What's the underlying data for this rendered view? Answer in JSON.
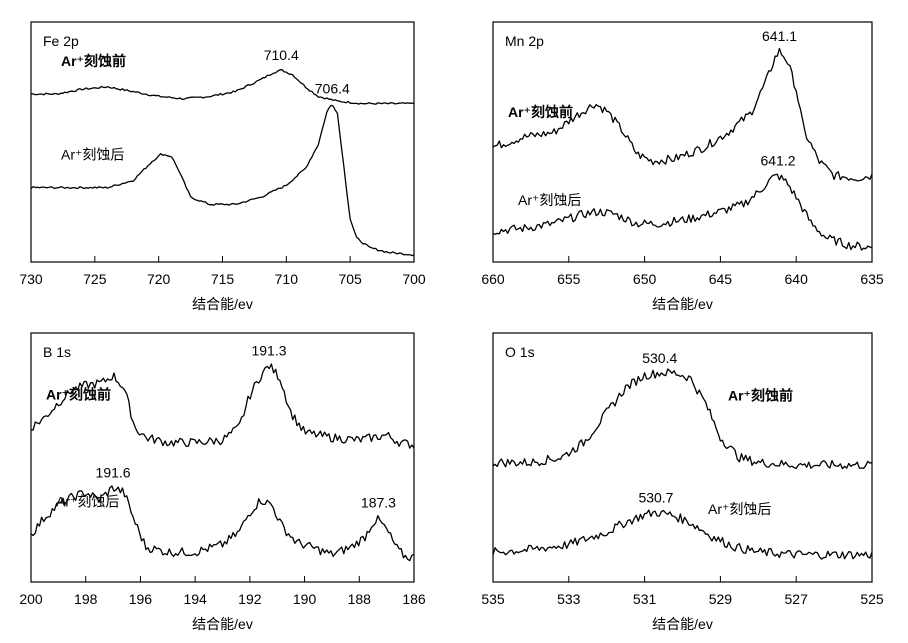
{
  "chart_data": [
    {
      "type": "line",
      "title": "Fe 2p",
      "xlabel": "结合能/ev",
      "xlim": [
        730,
        700
      ],
      "xticks": [
        730,
        725,
        720,
        715,
        710,
        705,
        700
      ],
      "yticks": false,
      "series": [
        {
          "name": "Ar⁺刻蚀前",
          "bold": true,
          "peak_label": "710.4",
          "points": [
            [
              730,
              0.7
            ],
            [
              728,
              0.7
            ],
            [
              726,
              0.72
            ],
            [
              724,
              0.73
            ],
            [
              722,
              0.71
            ],
            [
              720,
              0.69
            ],
            [
              718,
              0.68
            ],
            [
              716,
              0.69
            ],
            [
              714,
              0.71
            ],
            [
              712,
              0.76
            ],
            [
              711,
              0.79
            ],
            [
              710.4,
              0.8
            ],
            [
              709.5,
              0.78
            ],
            [
              708.5,
              0.73
            ],
            [
              707.5,
              0.69
            ],
            [
              706,
              0.67
            ],
            [
              704,
              0.66
            ],
            [
              702,
              0.66
            ],
            [
              700,
              0.66
            ]
          ]
        },
        {
          "name": "Ar⁺刻蚀后",
          "bold": false,
          "peak_label": "706.4",
          "points": [
            [
              730,
              0.31
            ],
            [
              728,
              0.31
            ],
            [
              726,
              0.31
            ],
            [
              724,
              0.31
            ],
            [
              722,
              0.34
            ],
            [
              720.5,
              0.42
            ],
            [
              719.8,
              0.45
            ],
            [
              719,
              0.44
            ],
            [
              718.5,
              0.39
            ],
            [
              717.5,
              0.27
            ],
            [
              716,
              0.24
            ],
            [
              714,
              0.24
            ],
            [
              712,
              0.27
            ],
            [
              710,
              0.32
            ],
            [
              708.5,
              0.39
            ],
            [
              707.5,
              0.49
            ],
            [
              706.8,
              0.63
            ],
            [
              706.4,
              0.66
            ],
            [
              706,
              0.62
            ],
            [
              705.5,
              0.4
            ],
            [
              705,
              0.18
            ],
            [
              704.5,
              0.1
            ],
            [
              703.5,
              0.06
            ],
            [
              702,
              0.04
            ],
            [
              700,
              0.03
            ]
          ]
        }
      ]
    },
    {
      "type": "line",
      "title": "Mn 2p",
      "xlabel": "结合能/ev",
      "xlim": [
        660,
        635
      ],
      "xticks": [
        660,
        655,
        650,
        645,
        640,
        635
      ],
      "yticks": false,
      "series": [
        {
          "name": "Ar⁺刻蚀前",
          "bold": true,
          "peak_label": "641.1",
          "points": [
            [
              660,
              0.48
            ],
            [
              658,
              0.52
            ],
            [
              656,
              0.54
            ],
            [
              654.5,
              0.61
            ],
            [
              653.3,
              0.66
            ],
            [
              652.5,
              0.63
            ],
            [
              651.5,
              0.55
            ],
            [
              650.5,
              0.45
            ],
            [
              649.5,
              0.42
            ],
            [
              648,
              0.43
            ],
            [
              646,
              0.48
            ],
            [
              644.5,
              0.54
            ],
            [
              643,
              0.62
            ],
            [
              642,
              0.75
            ],
            [
              641.4,
              0.85
            ],
            [
              641.1,
              0.88
            ],
            [
              640.6,
              0.84
            ],
            [
              640,
              0.72
            ],
            [
              639.5,
              0.55
            ],
            [
              638.5,
              0.42
            ],
            [
              637.5,
              0.36
            ],
            [
              636,
              0.35
            ],
            [
              635,
              0.36
            ]
          ]
        },
        {
          "name": "Ar⁺刻蚀后",
          "bold": false,
          "peak_label": "641.2",
          "points": [
            [
              660,
              0.13
            ],
            [
              658,
              0.14
            ],
            [
              656,
              0.16
            ],
            [
              654,
              0.2
            ],
            [
              653,
              0.21
            ],
            [
              652,
              0.2
            ],
            [
              650.5,
              0.16
            ],
            [
              649,
              0.16
            ],
            [
              647,
              0.18
            ],
            [
              645,
              0.21
            ],
            [
              643.5,
              0.24
            ],
            [
              642.5,
              0.29
            ],
            [
              641.6,
              0.35
            ],
            [
              641.2,
              0.36
            ],
            [
              640.6,
              0.33
            ],
            [
              640,
              0.27
            ],
            [
              639,
              0.16
            ],
            [
              638,
              0.1
            ],
            [
              636.5,
              0.07
            ],
            [
              635,
              0.06
            ]
          ]
        }
      ]
    },
    {
      "type": "line",
      "title": "B 1s",
      "xlabel": "结合能/ev",
      "xlim": [
        200,
        186
      ],
      "xticks": [
        200,
        198,
        196,
        194,
        192,
        190,
        188,
        186
      ],
      "yticks": false,
      "series": [
        {
          "name": "Ar⁺刻蚀前",
          "bold": true,
          "peak_label": "191.3",
          "points": [
            [
              200,
              0.62
            ],
            [
              199.5,
              0.66
            ],
            [
              199,
              0.72
            ],
            [
              198.5,
              0.77
            ],
            [
              198,
              0.79
            ],
            [
              197.4,
              0.8
            ],
            [
              197,
              0.83
            ],
            [
              196.6,
              0.78
            ],
            [
              196.2,
              0.62
            ],
            [
              195.8,
              0.58
            ],
            [
              195,
              0.56
            ],
            [
              194,
              0.56
            ],
            [
              193,
              0.57
            ],
            [
              192.4,
              0.62
            ],
            [
              192,
              0.75
            ],
            [
              191.6,
              0.83
            ],
            [
              191.3,
              0.87
            ],
            [
              190.9,
              0.82
            ],
            [
              190.5,
              0.68
            ],
            [
              190,
              0.6
            ],
            [
              189,
              0.58
            ],
            [
              188,
              0.57
            ],
            [
              187,
              0.59
            ],
            [
              186.5,
              0.56
            ],
            [
              186,
              0.55
            ]
          ]
        },
        {
          "name": "Ar⁺刻蚀后",
          "bold": false,
          "peak_label": "191.6",
          "points": [
            [
              200,
              0.19
            ],
            [
              199.5,
              0.26
            ],
            [
              199,
              0.31
            ],
            [
              198.5,
              0.34
            ],
            [
              198,
              0.36
            ],
            [
              197.5,
              0.33
            ],
            [
              197,
              0.38
            ],
            [
              196.6,
              0.36
            ],
            [
              196.2,
              0.24
            ],
            [
              195.8,
              0.14
            ],
            [
              195,
              0.12
            ],
            [
              194,
              0.12
            ],
            [
              193,
              0.15
            ],
            [
              192.4,
              0.2
            ],
            [
              192,
              0.28
            ],
            [
              191.6,
              0.33
            ],
            [
              191.2,
              0.31
            ],
            [
              190.8,
              0.22
            ],
            [
              190.3,
              0.16
            ],
            [
              189.5,
              0.13
            ],
            [
              189,
              0.11
            ],
            [
              188.3,
              0.14
            ],
            [
              187.8,
              0.18
            ],
            [
              187.5,
              0.24
            ],
            [
              187.3,
              0.25
            ],
            [
              187,
              0.21
            ],
            [
              186.6,
              0.13
            ],
            [
              186.3,
              0.1
            ],
            [
              186,
              0.1
            ]
          ]
        },
        {
          "name": "",
          "bold": false,
          "peak_label": "187.3",
          "label_only": true,
          "label_x": 187.3,
          "label_y": 0.3,
          "points": []
        }
      ]
    },
    {
      "type": "line",
      "title": "O 1s",
      "xlabel": "结合能/ev",
      "xlim": [
        535,
        525
      ],
      "xticks": [
        535,
        533,
        531,
        529,
        527,
        525
      ],
      "yticks": false,
      "series": [
        {
          "name": "Ar⁺刻蚀前",
          "bold": true,
          "peak_label": "530.4",
          "points": [
            [
              535,
              0.48
            ],
            [
              534,
              0.48
            ],
            [
              533.2,
              0.5
            ],
            [
              532.6,
              0.56
            ],
            [
              532,
              0.68
            ],
            [
              531.5,
              0.78
            ],
            [
              531,
              0.83
            ],
            [
              530.6,
              0.84
            ],
            [
              530.2,
              0.84
            ],
            [
              529.8,
              0.82
            ],
            [
              529.4,
              0.72
            ],
            [
              529,
              0.58
            ],
            [
              528.5,
              0.5
            ],
            [
              528,
              0.48
            ],
            [
              527,
              0.47
            ],
            [
              526,
              0.47
            ],
            [
              525,
              0.47
            ]
          ]
        },
        {
          "name": "Ar⁺刻蚀后",
          "bold": false,
          "peak_label": "530.7",
          "points": [
            [
              535,
              0.12
            ],
            [
              534,
              0.13
            ],
            [
              533,
              0.15
            ],
            [
              532,
              0.2
            ],
            [
              531.5,
              0.24
            ],
            [
              531,
              0.27
            ],
            [
              530.7,
              0.28
            ],
            [
              530.3,
              0.27
            ],
            [
              529.8,
              0.24
            ],
            [
              529.2,
              0.18
            ],
            [
              528.6,
              0.14
            ],
            [
              528,
              0.12
            ],
            [
              527,
              0.11
            ],
            [
              526,
              0.11
            ],
            [
              525,
              0.11
            ]
          ]
        }
      ]
    }
  ]
}
